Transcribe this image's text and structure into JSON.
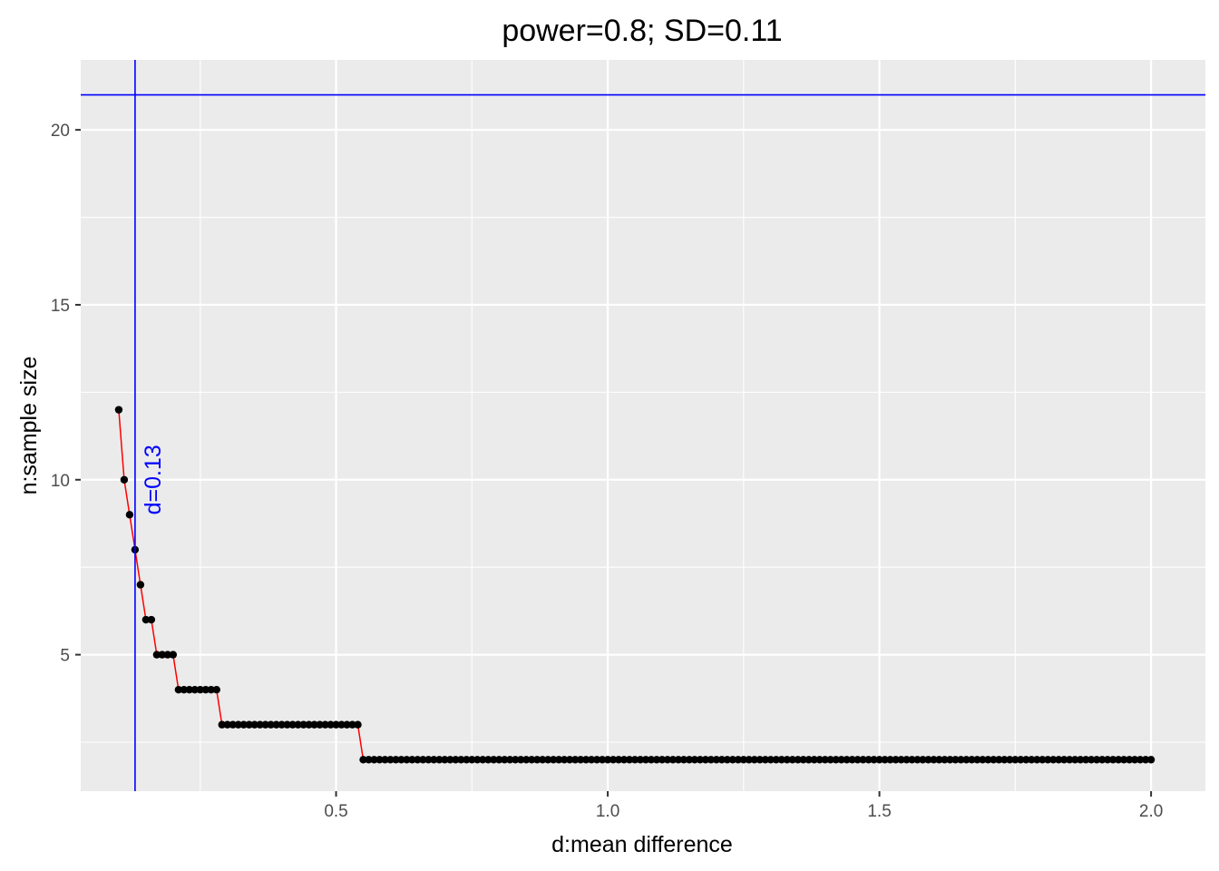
{
  "chart_data": {
    "type": "line",
    "title": "power=0.8; SD=0.11",
    "xlabel": "d:mean difference",
    "ylabel": "n:sample size",
    "xlim": [
      0.03,
      2.1
    ],
    "ylim": [
      1.1,
      22.0
    ],
    "x_ticks": [
      0.5,
      1.0,
      1.5,
      2.0
    ],
    "x_tick_labels": [
      "0.5",
      "1.0",
      "1.5",
      "2.0"
    ],
    "y_ticks": [
      5,
      10,
      15,
      20
    ],
    "y_tick_labels": [
      "5",
      "10",
      "15",
      "20"
    ],
    "grid": true,
    "legend": "none",
    "series": [
      {
        "steps": [
          {
            "from": 0.1,
            "to": 0.1,
            "n": 12
          },
          {
            "from": 0.11,
            "to": 0.11,
            "n": 10
          },
          {
            "from": 0.12,
            "to": 0.12,
            "n": 9
          },
          {
            "from": 0.13,
            "to": 0.13,
            "n": 8
          },
          {
            "from": 0.14,
            "to": 0.14,
            "n": 7
          },
          {
            "from": 0.15,
            "to": 0.16,
            "n": 6
          },
          {
            "from": 0.17,
            "to": 0.2,
            "n": 5
          },
          {
            "from": 0.21,
            "to": 0.28,
            "n": 4
          },
          {
            "from": 0.29,
            "to": 0.54,
            "n": 3
          },
          {
            "from": 0.55,
            "to": 2.0,
            "n": 2
          }
        ],
        "step": 0.01,
        "line_color": "#ff0000",
        "point_color": "#000000"
      }
    ],
    "reference_lines": {
      "vertical_x": 0.13,
      "horizontal_y": 21,
      "color": "#0000ff"
    },
    "annotations": [
      {
        "text": "d=0.13",
        "x": 0.13,
        "y": 10,
        "color": "#0000ff",
        "rotation": "vertical"
      }
    ]
  }
}
